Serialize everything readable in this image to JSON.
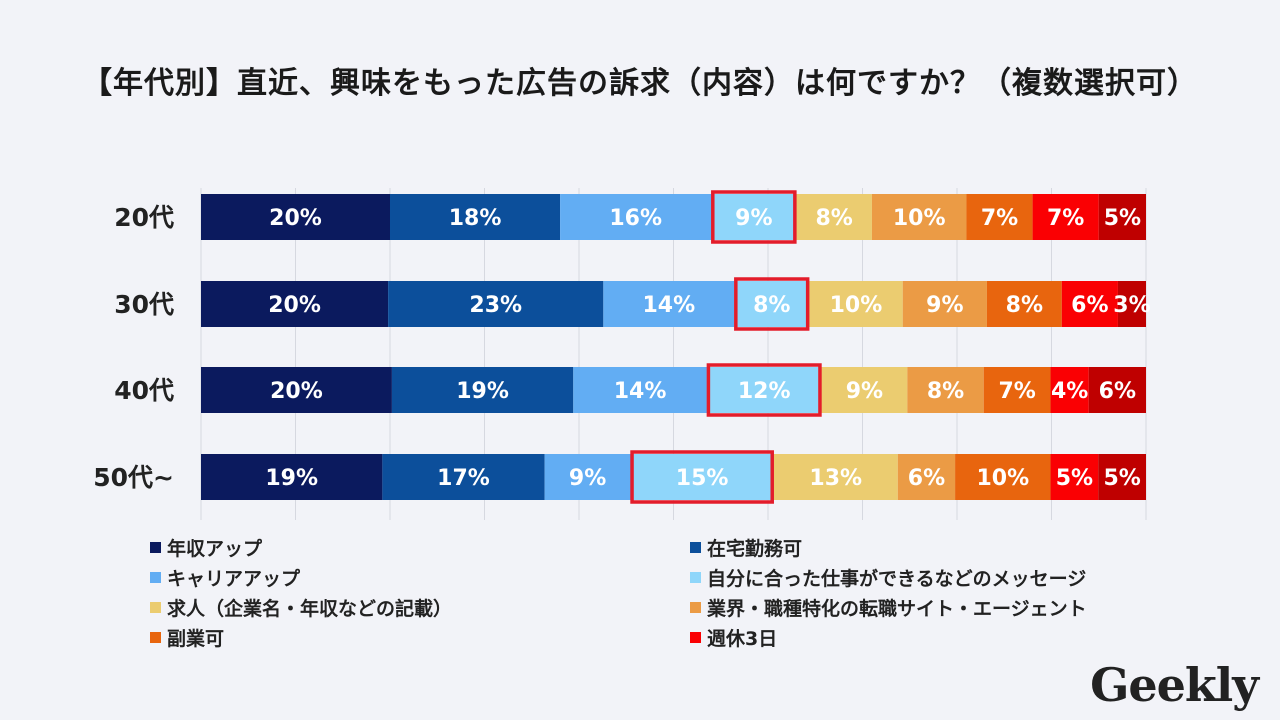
{
  "title": "【年代別】直近、興味をもった広告の訴求（内容）は何ですか？（複数選択可）",
  "brand": "Geekly",
  "chart_data": {
    "type": "bar",
    "orientation": "horizontal",
    "stacked": true,
    "normalized": true,
    "categories": [
      "20代",
      "30代",
      "40代",
      "50代~"
    ],
    "value_format": "percent",
    "highlighted_series": "自分に合った仕事ができるなどのメッセージ",
    "grid": true,
    "legend": "bottom",
    "series": [
      {
        "name": "年収アップ",
        "color": "#0b1a5e",
        "values": [
          20,
          20,
          20,
          19
        ]
      },
      {
        "name": "在宅勤務可",
        "color": "#0c4f9b",
        "values": [
          18,
          23,
          19,
          17
        ]
      },
      {
        "name": "キャリアアップ",
        "color": "#62adf3",
        "values": [
          16,
          14,
          14,
          9
        ]
      },
      {
        "name": "自分に合った仕事ができるなどのメッセージ",
        "color": "#8fd6fa",
        "values": [
          9,
          8,
          12,
          15
        ]
      },
      {
        "name": "求人（企業名・年収などの記載）",
        "color": "#ebcc70",
        "values": [
          8,
          10,
          9,
          13
        ]
      },
      {
        "name": "業界・職種特化の転職サイト・エージェント",
        "color": "#eb9b45",
        "values": [
          10,
          9,
          8,
          6
        ]
      },
      {
        "name": "副業可",
        "color": "#e8650e",
        "values": [
          7,
          8,
          7,
          10
        ]
      },
      {
        "name": "週休3日",
        "color": "#fa0003",
        "values": [
          7,
          6,
          4,
          5
        ]
      },
      {
        "name": "",
        "color": "#bf0000",
        "values": [
          5,
          3,
          6,
          5
        ]
      }
    ],
    "bar_sums": [
      100,
      101,
      99,
      99
    ],
    "highlight_color": "#e31c2b"
  },
  "legend_items": [
    {
      "label": "年収アップ",
      "color": "#0b1a5e"
    },
    {
      "label": "在宅勤務可",
      "color": "#0c4f9b"
    },
    {
      "label": "キャリアアップ",
      "color": "#62adf3"
    },
    {
      "label": "自分に合った仕事ができるなどのメッセージ",
      "color": "#8fd6fa"
    },
    {
      "label": "求人（企業名・年収などの記載）",
      "color": "#ebcc70"
    },
    {
      "label": "業界・職種特化の転職サイト・エージェント",
      "color": "#eb9b45"
    },
    {
      "label": "副業可",
      "color": "#e8650e"
    },
    {
      "label": "週休3日",
      "color": "#fa0003"
    }
  ]
}
